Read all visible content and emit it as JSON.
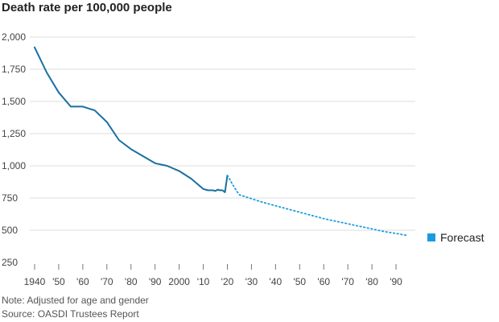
{
  "chart_data": {
    "type": "line",
    "title": "Death rate per 100,000 people",
    "xlabel": "",
    "ylabel": "",
    "xlim": [
      1938,
      2098
    ],
    "ylim": [
      250,
      2000
    ],
    "y_ticks": [
      {
        "value": 2000,
        "label": "2,000"
      },
      {
        "value": 1750,
        "label": "1,750"
      },
      {
        "value": 1500,
        "label": "1,500"
      },
      {
        "value": 1250,
        "label": "1,250"
      },
      {
        "value": 1000,
        "label": "1,000"
      },
      {
        "value": 750,
        "label": "750"
      },
      {
        "value": 500,
        "label": "500"
      },
      {
        "value": 250,
        "label": "250"
      }
    ],
    "x_ticks": [
      {
        "value": 1940,
        "label": "1940"
      },
      {
        "value": 1950,
        "label": "'50"
      },
      {
        "value": 1960,
        "label": "'60"
      },
      {
        "value": 1970,
        "label": "'70"
      },
      {
        "value": 1980,
        "label": "'80"
      },
      {
        "value": 1990,
        "label": "'90"
      },
      {
        "value": 2000,
        "label": "2000"
      },
      {
        "value": 2010,
        "label": "'10"
      },
      {
        "value": 2020,
        "label": "'20"
      },
      {
        "value": 2030,
        "label": "'30"
      },
      {
        "value": 2040,
        "label": "'40"
      },
      {
        "value": 2050,
        "label": "'50"
      },
      {
        "value": 2060,
        "label": "'60"
      },
      {
        "value": 2070,
        "label": "'70"
      },
      {
        "value": 2080,
        "label": "'80"
      },
      {
        "value": 2090,
        "label": "'90"
      }
    ],
    "grid": true,
    "legend_position": "right",
    "series": [
      {
        "style": "solid",
        "color": "#1a6fa0",
        "x": [
          1940,
          1945,
          1950,
          1955,
          1960,
          1965,
          1970,
          1975,
          1980,
          1985,
          1990,
          1995,
          2000,
          2005,
          2010,
          2012,
          2014,
          2015,
          2016,
          2017,
          2018,
          2019,
          2020
        ],
        "y": [
          1920,
          1725,
          1570,
          1460,
          1460,
          1430,
          1340,
          1200,
          1130,
          1075,
          1020,
          1000,
          960,
          900,
          820,
          810,
          810,
          805,
          815,
          810,
          810,
          795,
          925
        ]
      },
      {
        "name": "Forecast",
        "style": "dotted",
        "color": "#1a9be0",
        "x": [
          2020,
          2021,
          2022,
          2023,
          2024,
          2025,
          2030,
          2035,
          2040,
          2045,
          2050,
          2055,
          2060,
          2065,
          2070,
          2075,
          2080,
          2085,
          2090,
          2095
        ],
        "y": [
          925,
          895,
          860,
          830,
          800,
          775,
          745,
          715,
          690,
          665,
          640,
          615,
          590,
          570,
          550,
          530,
          510,
          490,
          475,
          458
        ]
      }
    ]
  },
  "legend": {
    "label": "Forecast",
    "swatch_color": "#1a9be0"
  },
  "footer": {
    "note": "Note: Adjusted for age and gender",
    "source": "Source: OASDI Trustees Report"
  }
}
